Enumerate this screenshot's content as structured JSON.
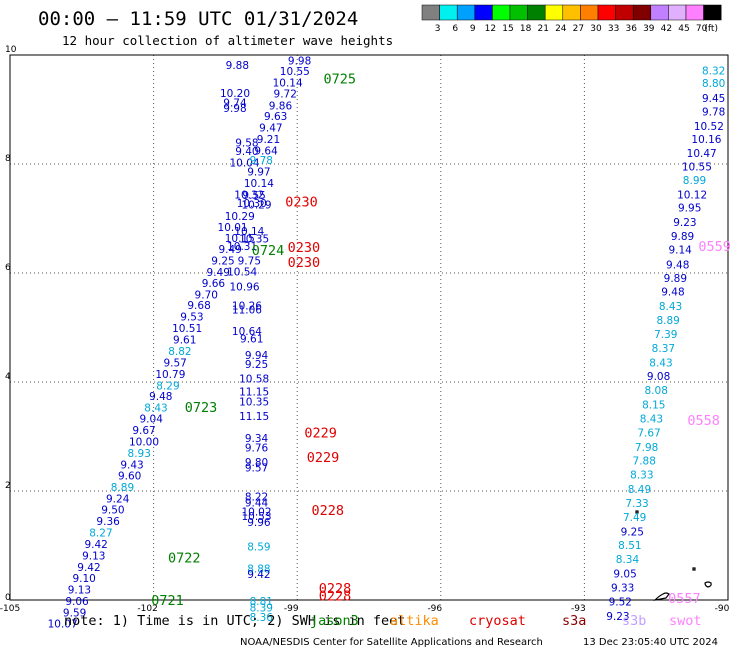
{
  "title": "00:00 – 11:59 UTC 01/31/2024",
  "subtitle": "12 hour collection of altimeter wave heights",
  "colorbar": {
    "colors": [
      "#808080",
      "#00f0f0",
      "#00a0ff",
      "#0000ff",
      "#00ff00",
      "#00c000",
      "#008000",
      "#ffff00",
      "#ffc000",
      "#ff8000",
      "#ff0000",
      "#c00000",
      "#800000",
      "#c080ff",
      "#e0b0ff",
      "#ff80ff",
      "#000000"
    ],
    "labels": [
      "3",
      "6",
      "9",
      "12",
      "15",
      "18",
      "21",
      "24",
      "27",
      "30",
      "33",
      "36",
      "39",
      "42",
      "45",
      "70",
      "(ft)"
    ]
  },
  "axes": {
    "x_ticks": [
      "-105",
      "-102",
      "-99",
      "-96",
      "-93",
      "-90"
    ],
    "y_ticks": [
      "0",
      "2",
      "4",
      "6",
      "8",
      "10"
    ],
    "lon_range": [
      -105,
      -90
    ],
    "lat_range": [
      0,
      10
    ]
  },
  "colors": {
    "blue": "#0000cc",
    "cyan": "#00a8d8",
    "green": "#008000",
    "red": "#e00000",
    "pink": "#ff80ff",
    "jason": "#008000",
    "altika": "#ff8c00",
    "cryosat": "#e00000",
    "s3a": "#8b0000",
    "s3b": "#c0a0ff",
    "swot": "#ff80ff"
  },
  "note": "note: 1) Time is in UTC; 2) SWH is in feet",
  "legend": [
    {
      "label": "jason3",
      "color": "#008000"
    },
    {
      "label": "altika",
      "color": "#ff8c00"
    },
    {
      "label": "cryosat",
      "color": "#e00000"
    },
    {
      "label": "s3a",
      "color": "#8b0000"
    },
    {
      "label": "s3b",
      "color": "#c0a0ff"
    },
    {
      "label": "swot",
      "color": "#ff80ff"
    }
  ],
  "credit": "NOAA/NESDIS Center for Satellite Applications and Research",
  "timestamp": "13 Dec 23:05:40 UTC 2024",
  "pass_labels": [
    {
      "text": "0725",
      "lon": -98.45,
      "lat": 9.57,
      "color": "green"
    },
    {
      "text": "0230",
      "lon": -99.25,
      "lat": 7.31,
      "color": "red"
    },
    {
      "text": "0724",
      "lon": -99.95,
      "lat": 6.42,
      "color": "green"
    },
    {
      "text": "0230",
      "lon": -99.2,
      "lat": 6.48,
      "color": "red"
    },
    {
      "text": "0230",
      "lon": -99.2,
      "lat": 6.2,
      "color": "red"
    },
    {
      "text": "0559",
      "lon": -90.62,
      "lat": 6.5,
      "color": "pink"
    },
    {
      "text": "0723",
      "lon": -101.35,
      "lat": 3.54,
      "color": "green"
    },
    {
      "text": "0558",
      "lon": -90.85,
      "lat": 3.3,
      "color": "pink"
    },
    {
      "text": "0229",
      "lon": -98.85,
      "lat": 3.07,
      "color": "red"
    },
    {
      "text": "0229",
      "lon": -98.8,
      "lat": 2.62,
      "color": "red"
    },
    {
      "text": "0228",
      "lon": -98.7,
      "lat": 1.65,
      "color": "red"
    },
    {
      "text": "0722",
      "lon": -101.7,
      "lat": 0.78,
      "color": "green"
    },
    {
      "text": "0228",
      "lon": -98.55,
      "lat": 0.22,
      "color": "red"
    },
    {
      "text": "0228",
      "lon": -98.55,
      "lat": 0.08,
      "color": "red"
    },
    {
      "text": "0721",
      "lon": -102.05,
      "lat": 0.0,
      "color": "green"
    },
    {
      "text": "0557",
      "lon": -91.25,
      "lat": 0.04,
      "color": "pink"
    }
  ],
  "wave_values": [
    {
      "v": "9.88",
      "lon": -100.25,
      "lat": 9.82,
      "c": "blue"
    },
    {
      "v": "9.98",
      "lon": -98.95,
      "lat": 9.9,
      "c": "blue"
    },
    {
      "v": "10.55",
      "lon": -99.05,
      "lat": 9.71,
      "c": "blue"
    },
    {
      "v": "10.14",
      "lon": -99.2,
      "lat": 9.5,
      "c": "blue"
    },
    {
      "v": "9.72",
      "lon": -99.25,
      "lat": 9.29,
      "c": "blue"
    },
    {
      "v": "10.20",
      "lon": -100.3,
      "lat": 9.3,
      "c": "blue"
    },
    {
      "v": "9.74",
      "lon": -100.3,
      "lat": 9.13,
      "c": "blue"
    },
    {
      "v": "9.98",
      "lon": -100.3,
      "lat": 9.03,
      "c": "blue"
    },
    {
      "v": "9.86",
      "lon": -99.35,
      "lat": 9.07,
      "c": "blue"
    },
    {
      "v": "9.63",
      "lon": -99.45,
      "lat": 8.88,
      "c": "blue"
    },
    {
      "v": "9.47",
      "lon": -99.55,
      "lat": 8.67,
      "c": "blue"
    },
    {
      "v": "9.21",
      "lon": -99.6,
      "lat": 8.46,
      "c": "blue"
    },
    {
      "v": "9.58",
      "lon": -100.05,
      "lat": 8.39,
      "c": "blue"
    },
    {
      "v": "9.40",
      "lon": -100.05,
      "lat": 8.24,
      "c": "blue"
    },
    {
      "v": "9.64",
      "lon": -99.65,
      "lat": 8.25,
      "c": "blue"
    },
    {
      "v": "10.04",
      "lon": -100.1,
      "lat": 8.03,
      "c": "blue"
    },
    {
      "v": "9.78",
      "lon": -99.75,
      "lat": 8.07,
      "c": "cyan"
    },
    {
      "v": "9.97",
      "lon": -99.8,
      "lat": 7.86,
      "c": "blue"
    },
    {
      "v": "10.14",
      "lon": -99.8,
      "lat": 7.65,
      "c": "blue"
    },
    {
      "v": "10.32",
      "lon": -100.0,
      "lat": 7.44,
      "c": "blue"
    },
    {
      "v": "9.55",
      "lon": -99.9,
      "lat": 7.43,
      "c": "blue"
    },
    {
      "v": "10.30",
      "lon": -99.95,
      "lat": 7.28,
      "c": "blue"
    },
    {
      "v": "10.29",
      "lon": -99.85,
      "lat": 7.26,
      "c": "blue"
    },
    {
      "v": "10.29",
      "lon": -100.2,
      "lat": 7.05,
      "c": "blue"
    },
    {
      "v": "10.01",
      "lon": -100.35,
      "lat": 6.84,
      "c": "blue"
    },
    {
      "v": "10.14",
      "lon": -100.0,
      "lat": 6.77,
      "c": "blue"
    },
    {
      "v": "10.15",
      "lon": -100.2,
      "lat": 6.64,
      "c": "blue"
    },
    {
      "v": "10.35",
      "lon": -99.9,
      "lat": 6.63,
      "c": "blue"
    },
    {
      "v": "10.31",
      "lon": -100.15,
      "lat": 6.5,
      "c": "blue"
    },
    {
      "v": "9.49",
      "lon": -100.4,
      "lat": 6.44,
      "c": "blue"
    },
    {
      "v": "9.25",
      "lon": -100.55,
      "lat": 6.23,
      "c": "blue"
    },
    {
      "v": "9.75",
      "lon": -100.0,
      "lat": 6.23,
      "c": "blue"
    },
    {
      "v": "9.49",
      "lon": -100.65,
      "lat": 6.02,
      "c": "blue"
    },
    {
      "v": "10.54",
      "lon": -100.15,
      "lat": 6.03,
      "c": "blue"
    },
    {
      "v": "9.66",
      "lon": -100.75,
      "lat": 5.82,
      "c": "blue"
    },
    {
      "v": "10.96",
      "lon": -100.1,
      "lat": 5.75,
      "c": "blue"
    },
    {
      "v": "9.70",
      "lon": -100.9,
      "lat": 5.61,
      "c": "blue"
    },
    {
      "v": "9.68",
      "lon": -101.05,
      "lat": 5.41,
      "c": "blue"
    },
    {
      "v": "10.26",
      "lon": -100.05,
      "lat": 5.4,
      "c": "blue"
    },
    {
      "v": "11.06",
      "lon": -100.05,
      "lat": 5.33,
      "c": "blue"
    },
    {
      "v": "9.53",
      "lon": -101.2,
      "lat": 5.2,
      "c": "blue"
    },
    {
      "v": "10.51",
      "lon": -101.3,
      "lat": 4.99,
      "c": "blue"
    },
    {
      "v": "10.64",
      "lon": -100.05,
      "lat": 4.94,
      "c": "blue"
    },
    {
      "v": "9.61",
      "lon": -101.35,
      "lat": 4.78,
      "c": "blue"
    },
    {
      "v": "9.61",
      "lon": -99.95,
      "lat": 4.8,
      "c": "blue"
    },
    {
      "v": "8.82",
      "lon": -101.45,
      "lat": 4.57,
      "c": "cyan"
    },
    {
      "v": "9.57",
      "lon": -101.55,
      "lat": 4.36,
      "c": "blue"
    },
    {
      "v": "9.94",
      "lon": -99.85,
      "lat": 4.5,
      "c": "blue"
    },
    {
      "v": "9.25",
      "lon": -99.85,
      "lat": 4.33,
      "c": "blue"
    },
    {
      "v": "10.79",
      "lon": -101.65,
      "lat": 4.15,
      "c": "blue"
    },
    {
      "v": "10.58",
      "lon": -99.9,
      "lat": 4.06,
      "c": "blue"
    },
    {
      "v": "8.29",
      "lon": -101.7,
      "lat": 3.94,
      "c": "cyan"
    },
    {
      "v": "11.15",
      "lon": -99.9,
      "lat": 3.83,
      "c": "blue"
    },
    {
      "v": "9.48",
      "lon": -101.85,
      "lat": 3.74,
      "c": "blue"
    },
    {
      "v": "10.35",
      "lon": -99.9,
      "lat": 3.64,
      "c": "blue"
    },
    {
      "v": "8.43",
      "lon": -101.95,
      "lat": 3.53,
      "c": "cyan"
    },
    {
      "v": "11.15",
      "lon": -99.9,
      "lat": 3.38,
      "c": "blue"
    },
    {
      "v": "9.04",
      "lon": -102.05,
      "lat": 3.33,
      "c": "blue"
    },
    {
      "v": "9.67",
      "lon": -102.2,
      "lat": 3.12,
      "c": "blue"
    },
    {
      "v": "9.34",
      "lon": -99.85,
      "lat": 2.97,
      "c": "blue"
    },
    {
      "v": "10.00",
      "lon": -102.2,
      "lat": 2.91,
      "c": "blue"
    },
    {
      "v": "9.76",
      "lon": -99.85,
      "lat": 2.8,
      "c": "blue"
    },
    {
      "v": "8.93",
      "lon": -102.3,
      "lat": 2.7,
      "c": "cyan"
    },
    {
      "v": "9.43",
      "lon": -102.45,
      "lat": 2.49,
      "c": "blue"
    },
    {
      "v": "9.80",
      "lon": -99.85,
      "lat": 2.53,
      "c": "blue"
    },
    {
      "v": "9.57",
      "lon": -99.85,
      "lat": 2.43,
      "c": "blue"
    },
    {
      "v": "9.60",
      "lon": -102.5,
      "lat": 2.28,
      "c": "blue"
    },
    {
      "v": "8.89",
      "lon": -102.65,
      "lat": 2.07,
      "c": "cyan"
    },
    {
      "v": "9.24",
      "lon": -102.75,
      "lat": 1.86,
      "c": "blue"
    },
    {
      "v": "8.22",
      "lon": -99.85,
      "lat": 1.9,
      "c": "blue"
    },
    {
      "v": "9.44",
      "lon": -99.85,
      "lat": 1.79,
      "c": "blue"
    },
    {
      "v": "9.50",
      "lon": -102.85,
      "lat": 1.66,
      "c": "blue"
    },
    {
      "v": "10.02",
      "lon": -99.85,
      "lat": 1.62,
      "c": "blue"
    },
    {
      "v": "10.53",
      "lon": -99.85,
      "lat": 1.54,
      "c": "blue"
    },
    {
      "v": "9.36",
      "lon": -102.95,
      "lat": 1.45,
      "c": "blue"
    },
    {
      "v": "9.96",
      "lon": -99.8,
      "lat": 1.43,
      "c": "blue"
    },
    {
      "v": "8.27",
      "lon": -103.1,
      "lat": 1.24,
      "c": "cyan"
    },
    {
      "v": "9.42",
      "lon": -103.2,
      "lat": 1.03,
      "c": "blue"
    },
    {
      "v": "8.59",
      "lon": -99.8,
      "lat": 0.98,
      "c": "cyan"
    },
    {
      "v": "9.13",
      "lon": -103.25,
      "lat": 0.82,
      "c": "blue"
    },
    {
      "v": "9.42",
      "lon": -103.35,
      "lat": 0.61,
      "c": "blue"
    },
    {
      "v": "8.88",
      "lon": -99.8,
      "lat": 0.58,
      "c": "cyan"
    },
    {
      "v": "9.42",
      "lon": -99.8,
      "lat": 0.48,
      "c": "blue"
    },
    {
      "v": "9.10",
      "lon": -103.45,
      "lat": 0.4,
      "c": "blue"
    },
    {
      "v": "9.13",
      "lon": -103.55,
      "lat": 0.19,
      "c": "blue"
    },
    {
      "v": "9.06",
      "lon": -103.6,
      "lat": -0.02,
      "c": "blue"
    },
    {
      "v": "8.81",
      "lon": -99.75,
      "lat": -0.02,
      "c": "cyan"
    },
    {
      "v": "9.59",
      "lon": -103.65,
      "lat": -0.23,
      "c": "blue"
    },
    {
      "v": "8.39",
      "lon": -99.75,
      "lat": -0.14,
      "c": "cyan"
    },
    {
      "v": "8.36",
      "lon": -99.75,
      "lat": -0.31,
      "c": "cyan"
    },
    {
      "v": "10.07",
      "lon": -103.9,
      "lat": -0.43,
      "c": "blue"
    },
    {
      "v": "8.32",
      "lon": -90.3,
      "lat": 9.72,
      "c": "cyan"
    },
    {
      "v": "8.80",
      "lon": -90.3,
      "lat": 9.49,
      "c": "cyan"
    },
    {
      "v": "9.45",
      "lon": -90.3,
      "lat": 9.21,
      "c": "blue"
    },
    {
      "v": "9.78",
      "lon": -90.3,
      "lat": 8.96,
      "c": "blue"
    },
    {
      "v": "10.52",
      "lon": -90.4,
      "lat": 8.7,
      "c": "blue"
    },
    {
      "v": "10.16",
      "lon": -90.45,
      "lat": 8.46,
      "c": "blue"
    },
    {
      "v": "10.47",
      "lon": -90.55,
      "lat": 8.2,
      "c": "blue"
    },
    {
      "v": "10.55",
      "lon": -90.65,
      "lat": 7.95,
      "c": "blue"
    },
    {
      "v": "8.99",
      "lon": -90.7,
      "lat": 7.71,
      "c": "cyan"
    },
    {
      "v": "10.12",
      "lon": -90.75,
      "lat": 7.44,
      "c": "blue"
    },
    {
      "v": "9.95",
      "lon": -90.8,
      "lat": 7.2,
      "c": "blue"
    },
    {
      "v": "9.23",
      "lon": -90.9,
      "lat": 6.94,
      "c": "blue"
    },
    {
      "v": "9.89",
      "lon": -90.95,
      "lat": 6.68,
      "c": "blue"
    },
    {
      "v": "9.14",
      "lon": -91.0,
      "lat": 6.43,
      "c": "blue"
    },
    {
      "v": "9.48",
      "lon": -91.05,
      "lat": 6.16,
      "c": "blue"
    },
    {
      "v": "9.89",
      "lon": -91.1,
      "lat": 5.91,
      "c": "blue"
    },
    {
      "v": "9.48",
      "lon": -91.15,
      "lat": 5.66,
      "c": "blue"
    },
    {
      "v": "8.43",
      "lon": -91.2,
      "lat": 5.39,
      "c": "cyan"
    },
    {
      "v": "8.89",
      "lon": -91.25,
      "lat": 5.14,
      "c": "cyan"
    },
    {
      "v": "7.39",
      "lon": -91.3,
      "lat": 4.88,
      "c": "cyan"
    },
    {
      "v": "8.37",
      "lon": -91.35,
      "lat": 4.62,
      "c": "cyan"
    },
    {
      "v": "8.43",
      "lon": -91.4,
      "lat": 4.36,
      "c": "cyan"
    },
    {
      "v": "9.08",
      "lon": -91.45,
      "lat": 4.11,
      "c": "blue"
    },
    {
      "v": "8.08",
      "lon": -91.5,
      "lat": 3.85,
      "c": "cyan"
    },
    {
      "v": "8.15",
      "lon": -91.55,
      "lat": 3.59,
      "c": "cyan"
    },
    {
      "v": "8.43",
      "lon": -91.6,
      "lat": 3.33,
      "c": "cyan"
    },
    {
      "v": "7.67",
      "lon": -91.65,
      "lat": 3.07,
      "c": "cyan"
    },
    {
      "v": "7.98",
      "lon": -91.7,
      "lat": 2.81,
      "c": "cyan"
    },
    {
      "v": "7.88",
      "lon": -91.75,
      "lat": 2.56,
      "c": "cyan"
    },
    {
      "v": "8.33",
      "lon": -91.8,
      "lat": 2.3,
      "c": "cyan"
    },
    {
      "v": "8.49",
      "lon": -91.85,
      "lat": 2.04,
      "c": "cyan"
    },
    {
      "v": "7.33",
      "lon": -91.9,
      "lat": 1.78,
      "c": "cyan"
    },
    {
      "v": "7.49",
      "lon": -91.95,
      "lat": 1.52,
      "c": "cyan"
    },
    {
      "v": "9.25",
      "lon": -92.0,
      "lat": 1.26,
      "c": "blue"
    },
    {
      "v": "8.51",
      "lon": -92.05,
      "lat": 1.01,
      "c": "cyan"
    },
    {
      "v": "8.34",
      "lon": -92.1,
      "lat": 0.75,
      "c": "cyan"
    },
    {
      "v": "9.05",
      "lon": -92.15,
      "lat": 0.49,
      "c": "blue"
    },
    {
      "v": "9.33",
      "lon": -92.2,
      "lat": 0.23,
      "c": "blue"
    },
    {
      "v": "9.52",
      "lon": -92.25,
      "lat": -0.03,
      "c": "blue"
    },
    {
      "v": "9.23",
      "lon": -92.3,
      "lat": -0.29,
      "c": "blue"
    }
  ]
}
